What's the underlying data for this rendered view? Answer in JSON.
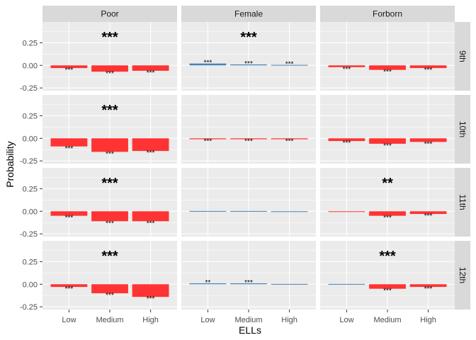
{
  "chart_data": {
    "type": "bar",
    "xlabel": "ELLs",
    "ylabel": "Probability",
    "categories": [
      "Low",
      "Medium",
      "High"
    ],
    "ylim": [
      -0.28,
      0.48
    ],
    "yticks": [
      -0.25,
      0.0,
      0.25
    ],
    "ytick_labels": [
      "-0.25",
      "0.00",
      "0.25"
    ],
    "columns": [
      "Poor",
      "Female",
      "Forborn"
    ],
    "rows": [
      "9th",
      "10th",
      "11th",
      "12th"
    ],
    "colors": {
      "positive": "#4682B4",
      "negative": "#FF3333",
      "panel_bg": "#EBEBEB",
      "strip_bg": "#D9D9D9",
      "grid": "#FFFFFF"
    },
    "panels": [
      {
        "row": "9th",
        "col": "Poor",
        "values": [
          -0.03,
          -0.07,
          -0.06
        ],
        "bar_labels": [
          "***",
          "***",
          "***"
        ],
        "panel_label": "***"
      },
      {
        "row": "9th",
        "col": "Female",
        "values": [
          0.02,
          0.01,
          0.005
        ],
        "bar_labels": [
          "***",
          "***",
          "***"
        ],
        "panel_label": "***"
      },
      {
        "row": "9th",
        "col": "Forborn",
        "values": [
          -0.02,
          -0.05,
          -0.03
        ],
        "bar_labels": [
          "***",
          "***",
          "***"
        ],
        "panel_label": ""
      },
      {
        "row": "10th",
        "col": "Poor",
        "values": [
          -0.09,
          -0.15,
          -0.14
        ],
        "bar_labels": [
          "***",
          "***",
          "***"
        ],
        "panel_label": "***"
      },
      {
        "row": "10th",
        "col": "Female",
        "values": [
          -0.01,
          -0.01,
          -0.01
        ],
        "bar_labels": [
          "***",
          "***",
          "***"
        ],
        "panel_label": ""
      },
      {
        "row": "10th",
        "col": "Forborn",
        "values": [
          -0.03,
          -0.06,
          -0.04
        ],
        "bar_labels": [
          "***",
          "***",
          "***"
        ],
        "panel_label": ""
      },
      {
        "row": "11th",
        "col": "Poor",
        "values": [
          -0.05,
          -0.11,
          -0.11
        ],
        "bar_labels": [
          "***",
          "***",
          "***"
        ],
        "panel_label": "***"
      },
      {
        "row": "11th",
        "col": "Female",
        "values": [
          0.003,
          0.003,
          0.0
        ],
        "bar_labels": [
          "",
          "",
          ""
        ],
        "panel_label": ""
      },
      {
        "row": "11th",
        "col": "Forborn",
        "values": [
          -0.003,
          -0.05,
          -0.03
        ],
        "bar_labels": [
          "",
          "***",
          "***"
        ],
        "panel_label": "**"
      },
      {
        "row": "12th",
        "col": "Poor",
        "values": [
          -0.03,
          -0.1,
          -0.14
        ],
        "bar_labels": [
          "***",
          "***",
          "***"
        ],
        "panel_label": "***"
      },
      {
        "row": "12th",
        "col": "Female",
        "values": [
          0.01,
          0.01,
          0.003
        ],
        "bar_labels": [
          "**",
          "***",
          ""
        ],
        "panel_label": ""
      },
      {
        "row": "12th",
        "col": "Forborn",
        "values": [
          0.003,
          -0.05,
          -0.03
        ],
        "bar_labels": [
          "",
          "***",
          "***"
        ],
        "panel_label": "***"
      }
    ]
  }
}
